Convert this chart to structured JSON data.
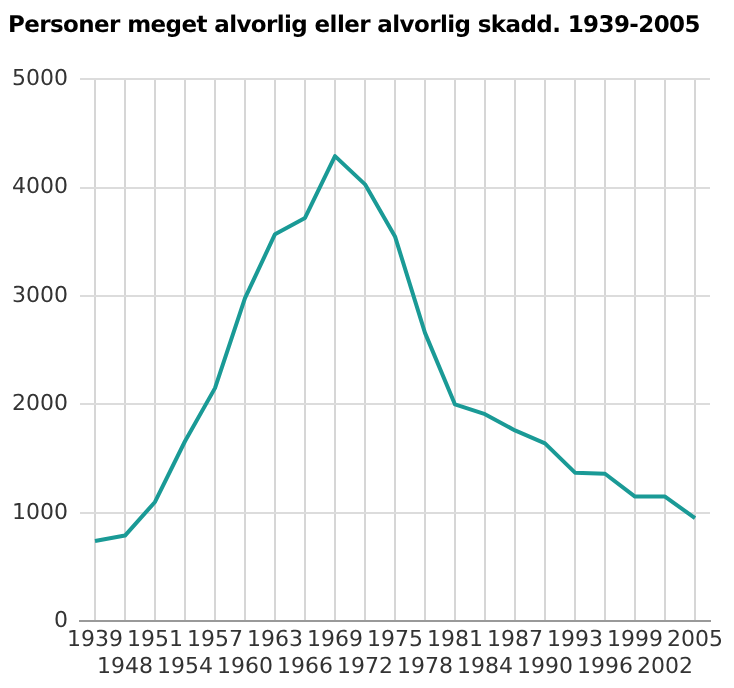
{
  "chart_data": {
    "type": "line",
    "title": "Personer meget alvorlig eller alvorlig skadd. 1939-2005",
    "categories": [
      "1939",
      "1948",
      "1951",
      "1954",
      "1957",
      "1960",
      "1963",
      "1966",
      "1969",
      "1972",
      "1975",
      "1978",
      "1981",
      "1984",
      "1987",
      "1990",
      "1993",
      "1996",
      "1999",
      "2002",
      "2005"
    ],
    "series": [
      {
        "color": "#1a9a96",
        "values": [
          740,
          790,
          1100,
          1660,
          2150,
          2980,
          3570,
          3720,
          4290,
          4030,
          3550,
          2660,
          2000,
          1910,
          1760,
          1640,
          1370,
          1360,
          1150,
          1150,
          950
        ]
      }
    ],
    "ylim": [
      0,
      5000
    ],
    "yticks": [
      0,
      1000,
      2000,
      3000,
      4000,
      5000
    ],
    "grid": true,
    "legend": false,
    "marker": "none",
    "line_style": "solid"
  }
}
